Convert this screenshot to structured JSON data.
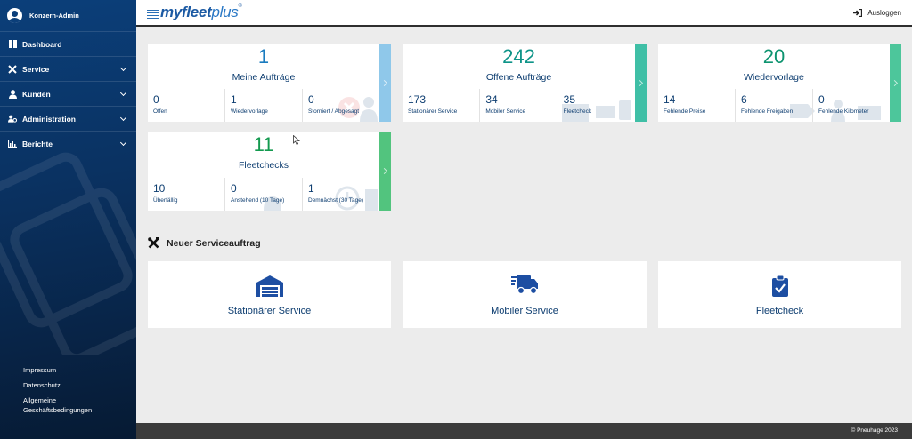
{
  "sidebar": {
    "user": "Konzern-Admin",
    "items": [
      {
        "label": "Dashboard",
        "icon": "dashboard-icon"
      },
      {
        "label": "Service",
        "icon": "tools-icon"
      },
      {
        "label": "Kunden",
        "icon": "user-icon"
      },
      {
        "label": "Administration",
        "icon": "users-cog-icon"
      },
      {
        "label": "Berichte",
        "icon": "chart-icon"
      }
    ],
    "footer": {
      "impressum": "Impressum",
      "datenschutz": "Datenschutz",
      "agb_line1": "Allgemeine",
      "agb_line2": "Geschäftsbedingungen"
    }
  },
  "header": {
    "logo_main": "myfleet",
    "logo_plus": "plus",
    "logo_reg": "®",
    "logout": "Ausloggen"
  },
  "cards": [
    {
      "value": "1",
      "title": "Meine Aufträge",
      "color": "#1a7bbf",
      "accent": "#8fc8ea",
      "stats": [
        {
          "num": "0",
          "label": "Offen"
        },
        {
          "num": "1",
          "label": "Wiedervorlage"
        },
        {
          "num": "0",
          "label": "Storniert / Abgesagt"
        }
      ]
    },
    {
      "value": "242",
      "title": "Offene Aufträge",
      "color": "#0e9488",
      "accent": "#3fbfa6",
      "stats": [
        {
          "num": "173",
          "label": "Stationärer Service"
        },
        {
          "num": "34",
          "label": "Mobiler Service"
        },
        {
          "num": "35",
          "label": "Fleetcheck"
        }
      ]
    },
    {
      "value": "20",
      "title": "Wiedervorlage",
      "color": "#0e9470",
      "accent": "#4dc69b",
      "stats": [
        {
          "num": "14",
          "label": "Fehlende Preise"
        },
        {
          "num": "6",
          "label": "Fehlende Freigaben"
        },
        {
          "num": "0",
          "label": "Fehlende Kilometer"
        }
      ]
    },
    {
      "value": "11",
      "title": "Fleetchecks",
      "color": "#139a4f",
      "accent": "#52c47e",
      "stats": [
        {
          "num": "10",
          "label": "Überfällig"
        },
        {
          "num": "0",
          "label": "Anstehend (10 Tage)"
        },
        {
          "num": "1",
          "label": "Demnächst (30 Tage)"
        }
      ]
    }
  ],
  "section": {
    "title": "Neuer Serviceauftrag"
  },
  "services": [
    {
      "label": "Stationärer Service",
      "icon": "garage-icon"
    },
    {
      "label": "Mobiler Service",
      "icon": "truck-icon"
    },
    {
      "label": "Fleetcheck",
      "icon": "clipboard-check-icon"
    }
  ],
  "footer": {
    "copyright": "© Pneuhage 2023"
  }
}
